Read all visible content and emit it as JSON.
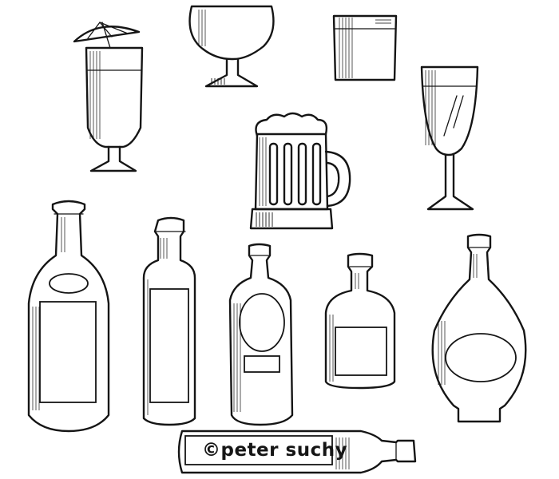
{
  "watermark": {
    "text": "©peter suchy"
  },
  "ink_color": "#151515",
  "background_color": "#ffffff"
}
